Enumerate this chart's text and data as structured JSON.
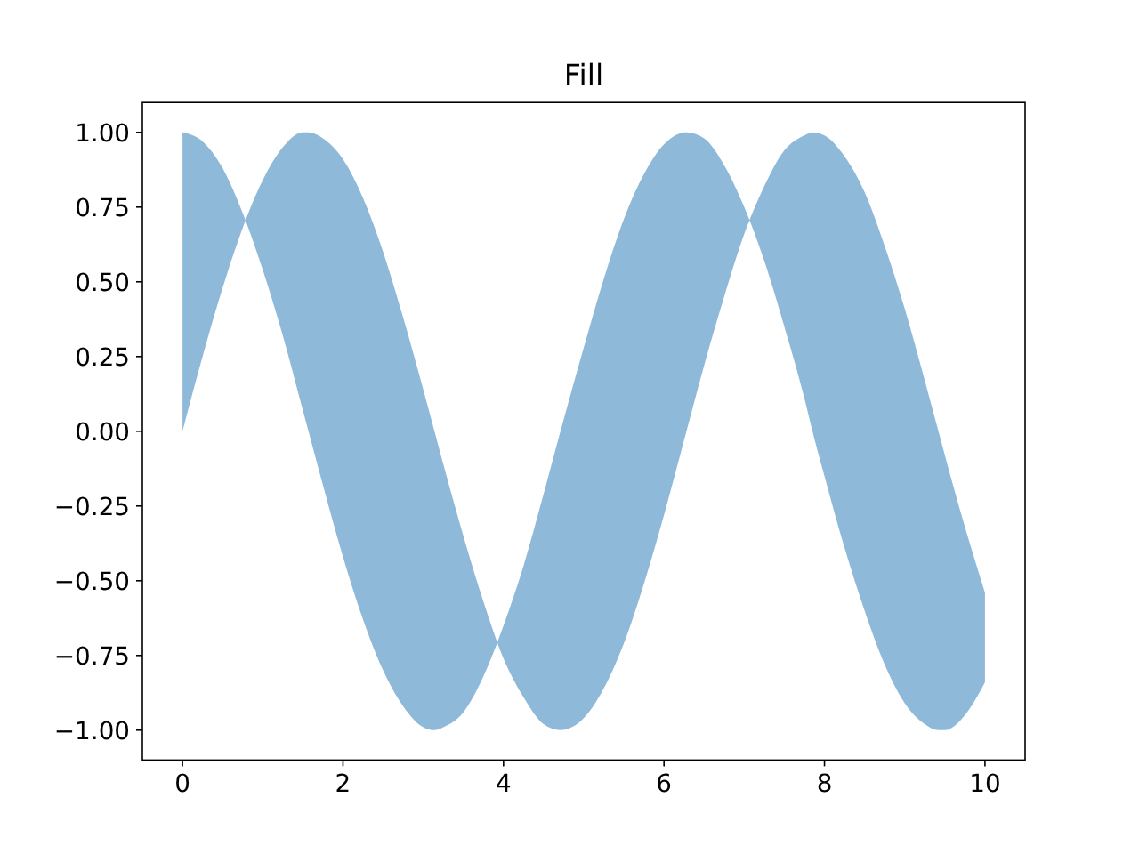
{
  "chart_data": {
    "type": "area",
    "title": "Fill",
    "x": [
      0,
      0.25,
      0.5,
      0.75,
      1,
      1.25,
      1.5,
      1.57,
      1.75,
      2,
      2.25,
      2.5,
      2.75,
      3,
      3.14,
      3.25,
      3.5,
      3.75,
      4,
      4.25,
      4.5,
      4.71,
      5,
      5.25,
      5.5,
      5.75,
      6,
      6.28,
      6.5,
      6.75,
      7,
      7.25,
      7.5,
      7.75,
      7.85,
      8,
      8.25,
      8.5,
      8.75,
      9,
      9.25,
      9.42,
      9.5,
      9.75,
      10
    ],
    "series": [
      {
        "color": "#8fb9d8",
        "values": [
          null,
          null,
          null,
          null,
          null,
          null,
          null,
          null,
          null,
          null,
          null,
          null,
          null,
          null,
          null,
          null,
          null,
          null,
          null,
          null,
          null,
          null,
          null,
          null,
          null,
          null,
          null,
          null,
          null,
          null,
          null,
          null,
          null,
          null,
          null,
          null,
          null,
          null,
          null,
          null,
          null,
          null,
          null,
          null,
          null
        ],
        "lower": [
          0,
          0.25,
          0.48,
          0.68,
          0.84,
          0.95,
          1.0,
          1.0,
          0.98,
          0.91,
          0.78,
          0.6,
          0.38,
          0.14,
          0.0,
          -0.11,
          -0.35,
          -0.57,
          -0.76,
          -0.89,
          -0.98,
          -1.0,
          -0.96,
          -0.86,
          -0.71,
          -0.51,
          -0.28,
          0.0,
          0.22,
          0.45,
          0.66,
          0.82,
          0.94,
          0.99,
          1.0,
          0.99,
          0.92,
          0.8,
          0.62,
          0.41,
          0.17,
          0.0,
          -0.08,
          -0.32,
          -0.54
        ],
        "upper": [
          1.0,
          0.97,
          0.88,
          0.73,
          0.54,
          0.32,
          0.07,
          0.0,
          -0.18,
          -0.42,
          -0.63,
          -0.8,
          -0.92,
          -0.99,
          -1.0,
          -0.99,
          -0.94,
          -0.82,
          -0.65,
          -0.45,
          -0.21,
          0.0,
          0.28,
          0.51,
          0.71,
          0.86,
          0.96,
          1.0,
          0.98,
          0.89,
          0.75,
          0.57,
          0.35,
          0.11,
          0.0,
          -0.15,
          -0.39,
          -0.6,
          -0.78,
          -0.91,
          -0.98,
          -1.0,
          -1.0,
          -0.95,
          -0.84
        ]
      }
    ],
    "xlim": [
      -0.5,
      10.5
    ],
    "ylim": [
      -1.1,
      1.1
    ],
    "xticks": [
      0,
      2,
      4,
      6,
      8,
      10
    ],
    "yticks": [
      {
        "value": -1,
        "label": "−1.00"
      },
      {
        "value": -0.75,
        "label": "−0.75"
      },
      {
        "value": -0.5,
        "label": "−0.50"
      },
      {
        "value": -0.25,
        "label": "−0.25"
      },
      {
        "value": 0,
        "label": "0.00"
      },
      {
        "value": 0.25,
        "label": "0.25"
      },
      {
        "value": 0.5,
        "label": "0.50"
      },
      {
        "value": 0.75,
        "label": "0.75"
      },
      {
        "value": 1,
        "label": "1.00"
      }
    ]
  }
}
